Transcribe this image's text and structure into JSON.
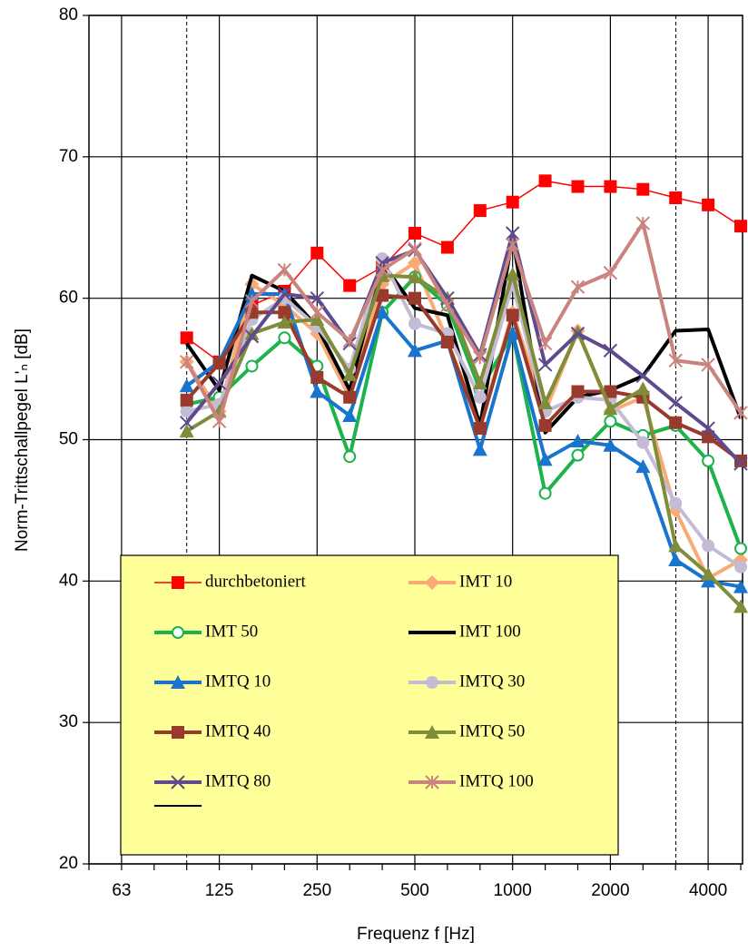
{
  "chart_data": {
    "type": "line",
    "y_label": "Norm-Trittschallpegel L'ₙ [dB]",
    "x_label": "Frequenz f [Hz]",
    "categories": [
      null,
      "63",
      null,
      null,
      "125",
      null,
      null,
      "250",
      null,
      null,
      "500",
      null,
      null,
      "1000",
      null,
      null,
      "2000",
      null,
      null,
      "4000",
      null
    ],
    "ylim": [
      20,
      80
    ],
    "yticks": [
      20,
      30,
      40,
      50,
      60,
      70,
      80
    ],
    "grid": true,
    "legend_background": "#ffff99",
    "series": [
      {
        "name": "durchbetoniert",
        "color": "#ff0000",
        "marker": "square",
        "width": 1.5,
        "values": [
          null,
          null,
          null,
          57.2,
          55.5,
          59.5,
          60.5,
          63.2,
          60.9,
          62.2,
          64.6,
          63.6,
          66.2,
          66.8,
          68.3,
          67.9,
          67.9,
          67.7,
          67.1,
          66.6,
          65.1
        ]
      },
      {
        "name": "IMT 10",
        "color": "#f8ab74",
        "marker": "diamond",
        "width": 4,
        "values": [
          null,
          null,
          null,
          55.5,
          52,
          61,
          59.5,
          57.5,
          53,
          61,
          62.5,
          57,
          51,
          59,
          52,
          57.7,
          52,
          53,
          45,
          40.2,
          41.5
        ]
      },
      {
        "name": "IMT 50",
        "color": "#1db34b",
        "marker": "circle-open",
        "width": 4,
        "values": [
          null,
          null,
          null,
          52.5,
          53,
          55.2,
          57.2,
          55.2,
          48.8,
          59,
          61.5,
          59.5,
          53.5,
          57.5,
          46.2,
          48.9,
          51.3,
          50.3,
          51,
          48.5,
          42.3
        ]
      },
      {
        "name": "IMT 100",
        "color": "#000000",
        "marker": "none",
        "width": 4,
        "values": [
          null,
          null,
          null,
          56.8,
          53.5,
          61.6,
          60.5,
          58,
          53.5,
          62.5,
          59.3,
          58.8,
          51,
          64.3,
          50.5,
          53,
          53.5,
          54.5,
          57.7,
          57.8,
          51.5
        ]
      },
      {
        "name": "IMTQ 10",
        "color": "#1874cd",
        "marker": "triangle",
        "width": 4,
        "values": [
          null,
          null,
          null,
          53.8,
          55.5,
          60.3,
          60.3,
          53.4,
          51.7,
          59,
          56.3,
          57,
          49.3,
          57.5,
          48.6,
          49.9,
          49.6,
          48.1,
          41.5,
          40,
          39.6
        ]
      },
      {
        "name": "IMTQ 30",
        "color": "#c4bcd4",
        "marker": "circle",
        "width": 4,
        "values": [
          null,
          null,
          null,
          52,
          52.5,
          58.5,
          60,
          58,
          55,
          62.8,
          58.2,
          57.5,
          53,
          61,
          52,
          53,
          52.8,
          49.8,
          45.5,
          42.5,
          41
        ]
      },
      {
        "name": "IMTQ 40",
        "color": "#983a2c",
        "marker": "square",
        "width": 4,
        "values": [
          null,
          null,
          null,
          52.8,
          55.4,
          59,
          59,
          54.4,
          53,
          60.2,
          60,
          56.9,
          50.8,
          58.8,
          51,
          53.4,
          53.4,
          53,
          51.2,
          50.2,
          48.5
        ]
      },
      {
        "name": "IMTQ 50",
        "color": "#7f8c3a",
        "marker": "triangle",
        "width": 4,
        "values": [
          null,
          null,
          null,
          50.6,
          52,
          57.5,
          58.3,
          58.5,
          54.6,
          61.6,
          61.5,
          60,
          54,
          61.7,
          52.6,
          57.6,
          52.2,
          53.6,
          42.5,
          40.5,
          38.2
        ]
      },
      {
        "name": "IMTQ 80",
        "color": "#5e4a8c",
        "marker": "x",
        "width": 4,
        "values": [
          null,
          null,
          null,
          51.2,
          54,
          57.3,
          60.3,
          60,
          56.8,
          62.5,
          63.4,
          60,
          56,
          64.6,
          55.3,
          57.5,
          56.3,
          54.5,
          52.6,
          50.8,
          48.3
        ]
      },
      {
        "name": "IMTQ 100",
        "color": "#c98480",
        "marker": "star",
        "width": 4,
        "values": [
          null,
          null,
          null,
          55.5,
          51.3,
          59.8,
          62,
          59,
          57,
          62,
          63.5,
          59.5,
          55.8,
          63.8,
          56.8,
          60.8,
          61.8,
          65.3,
          55.6,
          55.3,
          51.9
        ]
      }
    ]
  }
}
